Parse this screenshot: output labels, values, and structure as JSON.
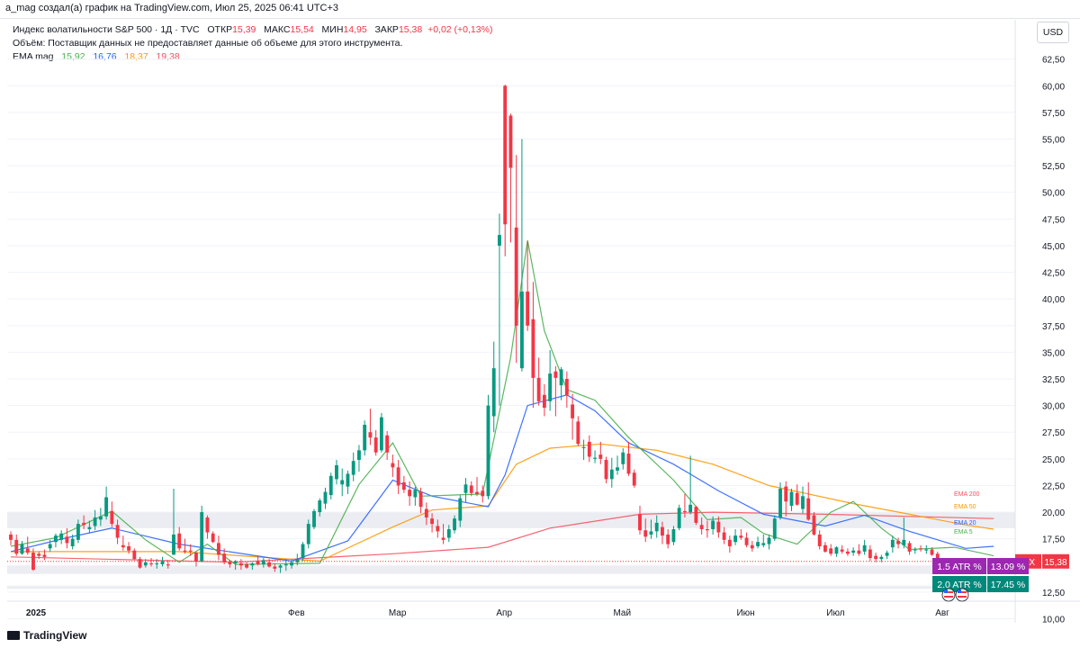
{
  "header": {
    "author_line": "a_mag создал(а) график на TradingView.com, Июл 25, 2025 06:41 UTC+3"
  },
  "legend": {
    "symbol": "Индекс волатильности S&P 500 · 1Д · TVC",
    "open_label": "ОТКР",
    "open_value": "15,39",
    "high_label": "МАКС",
    "high_value": "15,54",
    "low_label": "МИН",
    "low_value": "14,95",
    "close_label": "ЗАКР",
    "close_value": "15,38",
    "change": "+0,02 (+0,13%)",
    "volume_note": "Объём: Поставщик данных не предоставляет данные об объеме для этого инструмента.",
    "ema_title": "EMA mag",
    "ema_values": [
      "15,92",
      "16,76",
      "18,37",
      "19,38"
    ]
  },
  "currency": "USD",
  "footer": {
    "brand": "TradingView"
  },
  "chart_data": {
    "type": "candlestick",
    "y_axis": {
      "min": 10,
      "max": 62.5,
      "ticks": [
        "62,50",
        "60,00",
        "57,50",
        "55,00",
        "52,50",
        "50,00",
        "47,50",
        "45,00",
        "42,50",
        "40,00",
        "37,50",
        "35,00",
        "32,50",
        "30,00",
        "27,50",
        "25,00",
        "22,50",
        "20,00",
        "17,50",
        "12,50",
        "10,00"
      ]
    },
    "x_axis": {
      "labels": [
        "2025",
        "Фев",
        "Мар",
        "Апр",
        "Май",
        "Июн",
        "Июл",
        "Авг"
      ]
    },
    "last_price": {
      "symbol": "VIX",
      "value": "15,38",
      "number": 15.38
    },
    "atr_boxes": [
      {
        "label": "1.5 ATR %",
        "value": "13.09 %",
        "color": "#9c27b0"
      },
      {
        "label": "2.0 ATR %",
        "value": "17.45 %",
        "color": "#00897b"
      }
    ],
    "shaded_zones": [
      [
        18.5,
        20.0
      ],
      [
        14.2,
        15.0
      ],
      [
        12.8,
        13.1
      ]
    ],
    "ohlc": [
      [
        17.9,
        18.2,
        16.9,
        17.4
      ],
      [
        17.4,
        17.9,
        15.9,
        16.1
      ],
      [
        16.1,
        17.3,
        16.0,
        17.0
      ],
      [
        16.6,
        17.7,
        16.0,
        16.2
      ],
      [
        16.2,
        16.6,
        14.5,
        14.6
      ],
      [
        16.1,
        16.3,
        15.6,
        15.9
      ],
      [
        16.0,
        16.5,
        15.5,
        15.8
      ],
      [
        16.6,
        17.4,
        16.3,
        17.0
      ],
      [
        17.2,
        18.0,
        16.7,
        17.8
      ],
      [
        17.4,
        18.3,
        17.0,
        18.0
      ],
      [
        17.7,
        18.5,
        16.6,
        17.1
      ],
      [
        16.8,
        17.9,
        16.5,
        17.5
      ],
      [
        17.4,
        19.3,
        17.1,
        18.9
      ],
      [
        19.0,
        19.7,
        18.4,
        18.8
      ],
      [
        18.4,
        19.2,
        18.0,
        18.6
      ],
      [
        18.7,
        20.2,
        18.3,
        19.5
      ],
      [
        19.3,
        20.4,
        18.7,
        19.6
      ],
      [
        19.6,
        22.4,
        19.3,
        21.4
      ],
      [
        20.1,
        21.0,
        18.6,
        18.9
      ],
      [
        18.8,
        19.3,
        17.0,
        17.6
      ],
      [
        16.9,
        17.8,
        16.4,
        16.7
      ],
      [
        16.8,
        17.2,
        16.1,
        16.4
      ],
      [
        16.4,
        16.6,
        15.5,
        15.6
      ],
      [
        15.6,
        15.8,
        14.7,
        14.8
      ],
      [
        15.0,
        15.6,
        14.8,
        15.3
      ],
      [
        15.2,
        15.7,
        14.9,
        15.1
      ],
      [
        15.1,
        15.6,
        14.7,
        15.2
      ],
      [
        15.1,
        15.8,
        14.9,
        15.4
      ],
      [
        15.1,
        15.5,
        14.7,
        15.0
      ],
      [
        16.0,
        22.2,
        16.0,
        17.9
      ],
      [
        18.0,
        18.6,
        16.4,
        16.6
      ],
      [
        16.4,
        17.5,
        16.1,
        16.3
      ],
      [
        16.4,
        17.0,
        15.9,
        16.3
      ],
      [
        16.2,
        16.3,
        14.9,
        15.4
      ],
      [
        15.4,
        20.6,
        15.3,
        20.0
      ],
      [
        19.5,
        19.7,
        17.5,
        18.1
      ],
      [
        18.0,
        18.2,
        17.1,
        17.2
      ],
      [
        17.1,
        17.8,
        15.5,
        16.0
      ],
      [
        16.1,
        16.6,
        15.1,
        15.3
      ],
      [
        15.3,
        15.5,
        14.8,
        15.1
      ],
      [
        15.2,
        15.5,
        14.6,
        15.4
      ],
      [
        15.2,
        15.6,
        14.6,
        15.0
      ],
      [
        15.1,
        15.3,
        14.7,
        14.8
      ],
      [
        15.0,
        15.3,
        14.6,
        15.2
      ],
      [
        15.4,
        15.9,
        15.0,
        15.1
      ],
      [
        15.1,
        15.7,
        14.8,
        15.5
      ],
      [
        15.3,
        15.6,
        14.8,
        14.9
      ],
      [
        14.9,
        15.2,
        14.4,
        14.7
      ],
      [
        14.8,
        15.1,
        14.3,
        15.0
      ],
      [
        15.0,
        15.6,
        14.5,
        15.1
      ],
      [
        15.0,
        15.6,
        14.7,
        15.3
      ],
      [
        15.3,
        16.1,
        15.0,
        15.6
      ],
      [
        15.7,
        17.2,
        15.4,
        17.0
      ],
      [
        17.0,
        19.3,
        16.6,
        18.9
      ],
      [
        18.6,
        20.3,
        18.4,
        20.1
      ],
      [
        20.0,
        21.3,
        19.6,
        21.1
      ],
      [
        20.8,
        22.3,
        20.3,
        21.9
      ],
      [
        21.6,
        23.7,
        21.2,
        23.4
      ],
      [
        23.1,
        24.9,
        22.6,
        24.4
      ],
      [
        22.6,
        24.1,
        21.5,
        23.0
      ],
      [
        22.4,
        23.9,
        21.7,
        23.6
      ],
      [
        23.5,
        25.6,
        22.9,
        24.8
      ],
      [
        24.9,
        26.3,
        23.8,
        25.8
      ],
      [
        25.8,
        28.6,
        25.3,
        28.2
      ],
      [
        27.5,
        29.7,
        26.3,
        27.0
      ],
      [
        27.0,
        27.7,
        25.3,
        25.6
      ],
      [
        25.8,
        29.3,
        25.6,
        28.9
      ],
      [
        27.2,
        27.6,
        24.9,
        25.6
      ],
      [
        24.6,
        25.4,
        23.3,
        24.2
      ],
      [
        24.2,
        24.9,
        21.7,
        22.5
      ],
      [
        22.8,
        23.4,
        21.8,
        22.1
      ],
      [
        22.1,
        22.9,
        20.6,
        21.5
      ],
      [
        21.4,
        22.4,
        20.6,
        22.1
      ],
      [
        21.9,
        22.3,
        19.9,
        20.5
      ],
      [
        20.3,
        20.9,
        18.8,
        19.5
      ],
      [
        19.4,
        19.9,
        18.1,
        18.9
      ],
      [
        18.7,
        19.3,
        17.6,
        18.2
      ],
      [
        17.6,
        18.9,
        17.0,
        17.4
      ],
      [
        17.6,
        18.8,
        17.2,
        18.4
      ],
      [
        18.3,
        19.7,
        18.0,
        19.4
      ],
      [
        19.2,
        21.6,
        18.6,
        21.3
      ],
      [
        21.8,
        23.2,
        20.9,
        22.6
      ],
      [
        22.5,
        22.9,
        21.5,
        21.8
      ],
      [
        21.9,
        23.3,
        21.5,
        21.7
      ],
      [
        22.0,
        22.5,
        20.9,
        21.5
      ],
      [
        21.5,
        31.0,
        21.2,
        30.0
      ],
      [
        29.0,
        36.0,
        27.5,
        33.5
      ],
      [
        45.0,
        48.0,
        30.0,
        46.0
      ],
      [
        60.0,
        60.1,
        44.0,
        47.0
      ],
      [
        57.2,
        57.4,
        45.3,
        52.3
      ],
      [
        46.7,
        53.5,
        34.0,
        37.5
      ],
      [
        33.5,
        55.0,
        33.2,
        40.7
      ],
      [
        40.7,
        45.4,
        37.0,
        37.5
      ],
      [
        38.1,
        41.6,
        29.8,
        32.6
      ],
      [
        32.6,
        34.5,
        30.0,
        30.4
      ],
      [
        31.0,
        32.0,
        29.0,
        29.8
      ],
      [
        30.4,
        35.2,
        29.5,
        33.0
      ],
      [
        33.2,
        33.7,
        29.0,
        32.6
      ],
      [
        31.9,
        33.6,
        30.5,
        33.4
      ],
      [
        32.5,
        33.2,
        29.8,
        31.0
      ],
      [
        30.1,
        31.1,
        26.8,
        28.8
      ],
      [
        28.5,
        29.0,
        26.2,
        26.4
      ],
      [
        26.0,
        26.8,
        24.9,
        26.1
      ],
      [
        26.6,
        27.2,
        24.7,
        25.2
      ],
      [
        25.0,
        25.8,
        24.6,
        25.1
      ],
      [
        25.4,
        26.6,
        24.5,
        25.0
      ],
      [
        24.9,
        25.2,
        22.7,
        23.1
      ],
      [
        23.1,
        25.1,
        22.3,
        24.0
      ],
      [
        23.9,
        25.3,
        23.5,
        24.2
      ],
      [
        24.5,
        26.0,
        24.0,
        25.6
      ],
      [
        25.5,
        26.6,
        23.4,
        23.6
      ],
      [
        23.7,
        24.0,
        22.3,
        22.5
      ],
      [
        19.8,
        20.6,
        17.9,
        18.3
      ],
      [
        18.3,
        19.4,
        17.2,
        17.7
      ],
      [
        17.9,
        19.3,
        17.5,
        18.2
      ],
      [
        18.2,
        19.7,
        17.6,
        19.0
      ],
      [
        18.6,
        19.1,
        17.0,
        17.8
      ],
      [
        17.9,
        18.4,
        16.6,
        17.0
      ],
      [
        17.2,
        18.7,
        16.9,
        18.4
      ],
      [
        18.5,
        20.7,
        18.3,
        20.4
      ],
      [
        20.1,
        21.7,
        19.5,
        20.0
      ],
      [
        20.0,
        25.3,
        19.8,
        20.7
      ],
      [
        20.5,
        20.6,
        18.8,
        19.0
      ],
      [
        18.8,
        19.5,
        17.9,
        18.4
      ],
      [
        18.4,
        19.2,
        17.6,
        18.3
      ],
      [
        18.4,
        19.6,
        17.9,
        19.2
      ],
      [
        19.1,
        19.6,
        17.6,
        18.1
      ],
      [
        18.1,
        18.6,
        17.0,
        17.4
      ],
      [
        17.4,
        17.8,
        16.2,
        16.8
      ],
      [
        17.2,
        18.4,
        16.9,
        17.8
      ],
      [
        17.8,
        18.4,
        17.4,
        17.6
      ],
      [
        17.6,
        18.1,
        16.7,
        16.9
      ],
      [
        16.9,
        17.3,
        16.3,
        16.6
      ],
      [
        16.8,
        17.7,
        16.6,
        17.2
      ],
      [
        16.9,
        17.9,
        16.7,
        17.1
      ],
      [
        17.0,
        17.9,
        16.5,
        17.6
      ],
      [
        17.5,
        19.7,
        17.3,
        19.4
      ],
      [
        19.5,
        22.8,
        19.3,
        22.2
      ],
      [
        22.4,
        22.9,
        19.6,
        21.0
      ],
      [
        20.6,
        22.2,
        20.1,
        21.9
      ],
      [
        21.8,
        22.6,
        20.6,
        20.7
      ],
      [
        20.3,
        22.4,
        19.9,
        21.5
      ],
      [
        21.3,
        22.8,
        19.2,
        19.3
      ],
      [
        19.7,
        20.0,
        17.8,
        17.9
      ],
      [
        17.9,
        18.3,
        16.5,
        16.8
      ],
      [
        16.9,
        17.2,
        16.2,
        16.3
      ],
      [
        16.6,
        17.0,
        15.9,
        16.1
      ],
      [
        16.1,
        16.8,
        15.8,
        16.7
      ],
      [
        16.5,
        16.9,
        16.1,
        16.3
      ],
      [
        16.3,
        16.6,
        15.9,
        16.1
      ],
      [
        16.2,
        16.7,
        15.9,
        16.4
      ],
      [
        16.4,
        17.0,
        15.9,
        16.1
      ],
      [
        16.3,
        17.4,
        16.0,
        16.9
      ],
      [
        16.5,
        16.9,
        15.4,
        15.7
      ],
      [
        15.9,
        16.2,
        15.3,
        15.6
      ],
      [
        15.6,
        16.0,
        15.3,
        15.8
      ],
      [
        15.9,
        16.4,
        15.6,
        16.2
      ],
      [
        16.7,
        17.8,
        16.2,
        17.4
      ],
      [
        17.3,
        17.6,
        16.6,
        17.0
      ],
      [
        16.9,
        19.5,
        16.6,
        17.4
      ],
      [
        17.1,
        17.3,
        16.0,
        16.3
      ],
      [
        16.5,
        16.7,
        16.1,
        16.5
      ],
      [
        16.6,
        16.9,
        16.3,
        16.5
      ],
      [
        16.4,
        16.9,
        16.1,
        16.5
      ],
      [
        16.5,
        16.7,
        15.9,
        16.0
      ],
      [
        16.1,
        16.3,
        15.4,
        15.4
      ],
      [
        15.39,
        15.54,
        14.95,
        15.38
      ]
    ],
    "ema_lines": [
      {
        "name": "EMA 200",
        "color": "#f7525f",
        "points": [
          [
            0,
            15.8
          ],
          [
            40,
            15.3
          ],
          [
            68,
            16.1
          ],
          [
            85,
            16.7
          ],
          [
            96,
            18.5
          ],
          [
            112,
            19.8
          ],
          [
            125,
            20.0
          ],
          [
            145,
            19.8
          ],
          [
            160,
            19.6
          ],
          [
            175,
            19.4
          ]
        ]
      },
      {
        "name": "EMA 50",
        "color": "#ff9800",
        "points": [
          [
            0,
            16.3
          ],
          [
            30,
            16.3
          ],
          [
            55,
            15.4
          ],
          [
            68,
            18.6
          ],
          [
            75,
            20.2
          ],
          [
            85,
            20.6
          ],
          [
            90,
            24.5
          ],
          [
            96,
            26.0
          ],
          [
            105,
            26.4
          ],
          [
            115,
            25.8
          ],
          [
            125,
            24.5
          ],
          [
            135,
            22.5
          ],
          [
            150,
            20.8
          ],
          [
            160,
            19.8
          ],
          [
            170,
            18.8
          ],
          [
            175,
            18.4
          ]
        ]
      },
      {
        "name": "EMA 20",
        "color": "#2962ff",
        "points": [
          [
            0,
            16.3
          ],
          [
            10,
            17.6
          ],
          [
            18,
            18.5
          ],
          [
            30,
            17.0
          ],
          [
            50,
            15.4
          ],
          [
            60,
            17.3
          ],
          [
            68,
            23.0
          ],
          [
            75,
            21.5
          ],
          [
            85,
            20.5
          ],
          [
            88,
            23.5
          ],
          [
            92,
            30.0
          ],
          [
            99,
            31.0
          ],
          [
            104,
            29.5
          ],
          [
            110,
            26.5
          ],
          [
            118,
            24.5
          ],
          [
            126,
            22.0
          ],
          [
            134,
            19.8
          ],
          [
            145,
            18.7
          ],
          [
            152,
            19.7
          ],
          [
            160,
            18.2
          ],
          [
            170,
            16.6
          ],
          [
            175,
            16.8
          ]
        ]
      },
      {
        "name": "EMA 5",
        "color": "#4caf50",
        "points": [
          [
            0,
            16.8
          ],
          [
            8,
            17.6
          ],
          [
            18,
            20.1
          ],
          [
            24,
            17.4
          ],
          [
            30,
            15.3
          ],
          [
            35,
            17.0
          ],
          [
            40,
            15.1
          ],
          [
            55,
            15.2
          ],
          [
            62,
            22.6
          ],
          [
            68,
            26.5
          ],
          [
            73,
            21.5
          ],
          [
            84,
            21.7
          ],
          [
            89,
            34.5
          ],
          [
            92,
            45.5
          ],
          [
            95,
            37.0
          ],
          [
            99,
            31.5
          ],
          [
            104,
            30.5
          ],
          [
            110,
            27.0
          ],
          [
            118,
            23.0
          ],
          [
            124,
            19.3
          ],
          [
            130,
            19.5
          ],
          [
            134,
            18.0
          ],
          [
            140,
            17.0
          ],
          [
            146,
            20.0
          ],
          [
            150,
            21.0
          ],
          [
            155,
            18.5
          ],
          [
            160,
            16.5
          ],
          [
            168,
            16.7
          ],
          [
            175,
            15.9
          ]
        ]
      }
    ]
  }
}
